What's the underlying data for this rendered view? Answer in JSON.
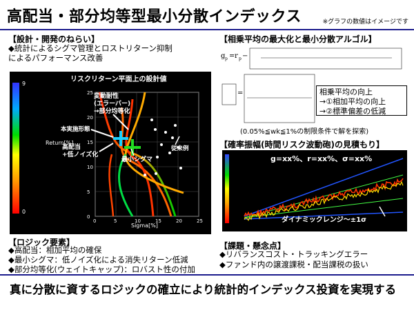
{
  "title": "高配当・部分均等型最小分散インデックス",
  "note": "※グラフの数値はイメージです",
  "design": {
    "heading": "【設計・開発のねらい】",
    "lines": [
      "◆統計によるシグマ管理とロストリターン抑制",
      "によるパフォーマンス改善"
    ]
  },
  "left_chart": {
    "title": "リスクリターン平面上の設計値",
    "xlabel": "Sigma[%]",
    "ylabel": "Return[%]",
    "xticks": [
      "0",
      "5",
      "10",
      "15",
      "20",
      "25"
    ],
    "yticks": [
      "0",
      "5",
      "10",
      "15",
      "20",
      "25"
    ],
    "colorbar_ticks": [
      "9",
      "0"
    ],
    "annotations": [
      "変動耐性",
      "(エラーバー)",
      "→部分均等化",
      "本実施形態",
      "高配当",
      "+低ノイズ化",
      "最小シグマ",
      "従来例"
    ]
  },
  "algo": {
    "heading": "【相乗平均の最大化と最小分散アルゴル】",
    "box_lines": [
      "相乗平均の向上",
      "→①相加平均の向上",
      "→②標準偏差の低減"
    ],
    "constraint": "(0.05%≦wk≦1%の制限条件で解を探索)"
  },
  "prob": {
    "heading": "【確率振幅(時間リスク波動砲)の見積もり】",
    "formula": "g=xx%、r=xx%、σ=xx%",
    "dyn_label": "ダイナミックレンジ〜±1σ"
  },
  "logic": {
    "heading": "【ロジック要素】",
    "lines": [
      "◆高配当：相加平均の確保",
      "◆最小シグマ：低ノイズ化による消失リターン低減",
      "◆部分均等化(ウェイトキャップ)：ロバスト性の付加"
    ]
  },
  "issues": {
    "heading": "【課題・懸念点】",
    "lines": [
      "◆リバランスコスト・トラッキングエラー",
      "◆ファンド内の譲渡課税・配当課税の扱い"
    ]
  },
  "footer": "真に分散に資するロジックの確立により統計的インデックス投資を実現する",
  "colors": {
    "accent": "#1a1a8c",
    "cross_cyan": "#19d0ff",
    "cross_green": "#22dd22",
    "panel_bg": "#000000"
  }
}
